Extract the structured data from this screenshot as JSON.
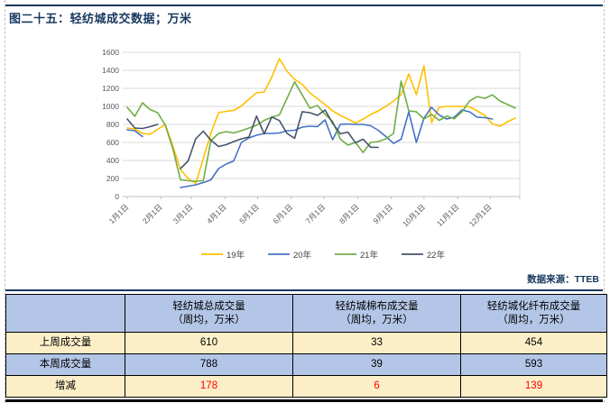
{
  "page": {
    "title": "图二十五：轻纺城成交数据；万米",
    "source_label": "数据来源：TTEB"
  },
  "colors": {
    "title_navy": "#17375E",
    "series_19": "#FFC000",
    "series_20": "#4472C4",
    "series_21": "#70AD47",
    "series_22": "#44546A",
    "table_blue": "#B4C6E7",
    "table_cream": "#FCEFC8",
    "delta_red": "#FF0000",
    "gridline": "#D9D9D9",
    "axis_text": "#595959"
  },
  "chart_data": {
    "type": "line",
    "title": "",
    "xlabel": "",
    "ylabel": "",
    "x_unit": "weekly points across one year",
    "x_tick_labels": [
      "1月1日",
      "2月1日",
      "3月1日",
      "4月1日",
      "5月1日",
      "6月1日",
      "7月1日",
      "8月1日",
      "9月1日",
      "10月1日",
      "11月1日",
      "12月1日"
    ],
    "month_start_days": [
      0,
      31,
      59,
      90,
      120,
      151,
      181,
      212,
      243,
      273,
      304,
      334
    ],
    "ylim": [
      0,
      1600
    ],
    "y_ticks": [
      0,
      200,
      400,
      600,
      800,
      1000,
      1200,
      1400,
      1600
    ],
    "grid": true,
    "legend_position": "bottom",
    "series": [
      {
        "name": "19年",
        "color": "#FFC000",
        "values": [
          760,
          750,
          700,
          690,
          745,
          800,
          560,
          300,
          200,
          145,
          420,
          700,
          930,
          945,
          955,
          1005,
          1080,
          1150,
          1160,
          1325,
          1530,
          1390,
          1300,
          1245,
          1150,
          1085,
          1020,
          950,
          900,
          860,
          815,
          860,
          910,
          950,
          1000,
          1060,
          1130,
          1360,
          1130,
          1450,
          820,
          990,
          1000,
          1000,
          1000,
          995,
          950,
          900,
          805,
          780,
          830,
          870
        ]
      },
      {
        "name": "20年",
        "color": "#4472C4",
        "values": [
          740,
          730,
          665,
          null,
          null,
          null,
          null,
          100,
          115,
          130,
          155,
          185,
          310,
          360,
          395,
          600,
          650,
          680,
          700,
          700,
          705,
          730,
          735,
          770,
          780,
          775,
          850,
          630,
          800,
          805,
          800,
          800,
          785,
          735,
          665,
          590,
          635,
          940,
          600,
          870,
          990,
          905,
          860,
          880,
          960,
          940,
          880,
          875,
          860,
          null,
          null,
          null
        ]
      },
      {
        "name": "21年",
        "color": "#70AD47",
        "values": [
          990,
          890,
          1040,
          965,
          930,
          790,
          530,
          185,
          175,
          170,
          175,
          620,
          700,
          720,
          705,
          730,
          760,
          790,
          845,
          880,
          905,
          1090,
          1272,
          1128,
          980,
          1010,
          912,
          833,
          638,
          570,
          600,
          488,
          600,
          610,
          640,
          700,
          1280,
          950,
          941,
          860,
          912,
          845,
          892,
          863,
          941,
          1060,
          1109,
          1089,
          1128,
          1060,
          1020,
          981
        ]
      },
      {
        "name": "22年",
        "color": "#44546A",
        "values": [
          860,
          760,
          755,
          775,
          800,
          null,
          null,
          310,
          395,
          640,
          725,
          625,
          555,
          575,
          610,
          640,
          660,
          892,
          695,
          882,
          843,
          700,
          646,
          941,
          930,
          900,
          960,
          813,
          696,
          715,
          597,
          636,
          547,
          545,
          null,
          null,
          null,
          null,
          null,
          null,
          null,
          null,
          null,
          null,
          null,
          null,
          null,
          null,
          null,
          null,
          null,
          null
        ]
      }
    ]
  },
  "table": {
    "columns": [
      {
        "name": "轻纺城总成交量",
        "unit": "（周均，万米）"
      },
      {
        "name": "轻纺城棉布成交量",
        "unit": "（周均，万米）"
      },
      {
        "name": "轻纺城化纤布成交量",
        "unit": "（周均，万米）"
      }
    ],
    "rows": [
      {
        "label": "上周成交量",
        "values": [
          "610",
          "33",
          "454"
        ]
      },
      {
        "label": "本周成交量",
        "values": [
          "788",
          "39",
          "593"
        ]
      },
      {
        "label": "增减",
        "values": [
          "178",
          "6",
          "139"
        ]
      }
    ]
  }
}
